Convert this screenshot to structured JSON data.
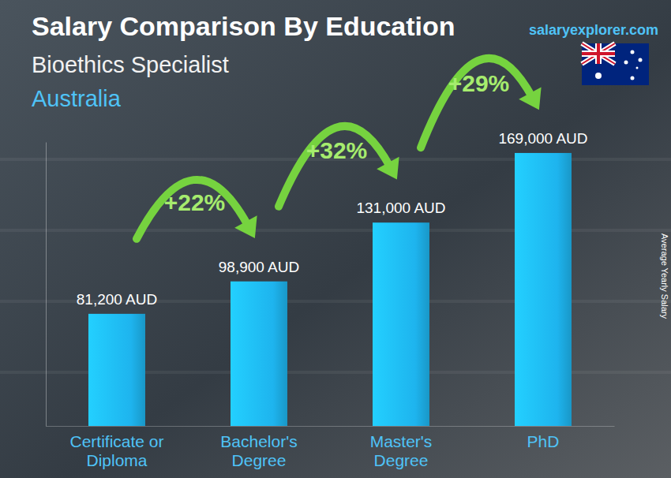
{
  "chart_data": {
    "type": "bar",
    "title": "Salary Comparison By Education",
    "subtitle": [
      "Bioethics Specialist",
      "Australia"
    ],
    "source": "salaryexplorer.com",
    "ylabel": "Average Yearly Salary",
    "categories": [
      "Certificate or Diploma",
      "Bachelor's Degree",
      "Master's Degree",
      "PhD"
    ],
    "values": [
      81200,
      98900,
      131000,
      169000
    ],
    "value_labels": [
      "81,200 AUD",
      "98,900 AUD",
      "131,000 AUD",
      "169,000 AUD"
    ],
    "data_labels": true,
    "annotations": [
      "+22%",
      "+32%",
      "+29%"
    ],
    "color": "#1eb4ee",
    "ylim": [
      20000,
      175000
    ],
    "yticks": [],
    "grid": false,
    "tick_labels": "x"
  }
}
